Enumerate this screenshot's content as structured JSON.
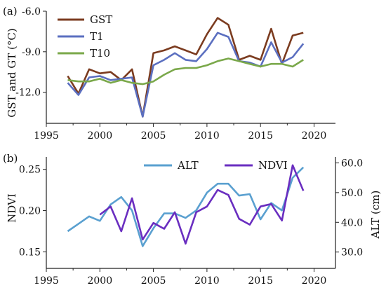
{
  "chart_data": [
    {
      "type": "line",
      "panel_label": "(a)",
      "ylabel": "GST and GT (°C)",
      "xlabel": "",
      "xlim": [
        1995,
        2022
      ],
      "ylim": [
        -14.3,
        -6.0
      ],
      "y_inverted": false,
      "x_ticks": [
        1995,
        2000,
        2005,
        2010,
        2015,
        2020
      ],
      "y_ticks": [
        -6.0,
        -9.0,
        -12.0
      ],
      "y_tick_labels": [
        "-6.0",
        "-9.0",
        "-12.0"
      ],
      "x_tick_labels": [
        "1995",
        "2000",
        "2005",
        "2010",
        "2015",
        "2020"
      ],
      "legend_position": "top-left",
      "grid": false,
      "x": [
        1997,
        1998,
        1999,
        2000,
        2001,
        2002,
        2003,
        2004,
        2005,
        2006,
        2007,
        2008,
        2009,
        2010,
        2011,
        2012,
        2013,
        2014,
        2015,
        2016,
        2017,
        2018,
        2019
      ],
      "series": [
        {
          "name": "GST",
          "color": "#7b3b1f",
          "values": [
            -10.8,
            -12.1,
            -10.3,
            -10.6,
            -10.5,
            -11.1,
            -10.3,
            -13.8,
            -9.1,
            -8.9,
            -8.6,
            -8.9,
            -9.2,
            -7.7,
            -6.5,
            -7.0,
            -9.6,
            -9.3,
            -9.6,
            -7.3,
            -9.9,
            -7.8,
            -7.6
          ]
        },
        {
          "name": "T1",
          "color": "#5b6fc0",
          "values": [
            -11.3,
            -12.2,
            -10.9,
            -10.8,
            -11.1,
            -11.0,
            -10.9,
            -13.8,
            -10.0,
            -9.6,
            -9.1,
            -9.6,
            -9.7,
            -8.8,
            -7.6,
            -7.9,
            -9.7,
            -9.8,
            -10.1,
            -8.3,
            -9.8,
            -9.4,
            -8.4
          ]
        },
        {
          "name": "T10",
          "color": "#7aa84a",
          "values": [
            -11.1,
            -11.2,
            -11.2,
            -11.0,
            -11.3,
            -11.1,
            -11.3,
            -11.4,
            -11.2,
            -10.7,
            -10.3,
            -10.2,
            -10.2,
            -10.0,
            -9.7,
            -9.5,
            -9.7,
            -9.9,
            -10.1,
            -9.9,
            -9.9,
            -10.1,
            -9.6
          ]
        }
      ]
    },
    {
      "type": "line",
      "panel_label": "(b)",
      "ylabel": "NDVI",
      "y2label": "ALT (cm)",
      "xlabel": "",
      "xlim": [
        1995,
        2022
      ],
      "ylim": [
        0.13,
        0.265
      ],
      "y2lim": [
        24.5,
        62.0
      ],
      "x_ticks": [
        1995,
        2000,
        2005,
        2010,
        2015,
        2020
      ],
      "x_tick_labels": [
        "1995",
        "2000",
        "2005",
        "2010",
        "2015",
        "2020"
      ],
      "y_ticks": [
        0.15,
        0.2,
        0.25
      ],
      "y_tick_labels": [
        "0.15",
        "0.20",
        "0.25"
      ],
      "y2_ticks": [
        30.0,
        40.0,
        50.0,
        60.0
      ],
      "y2_tick_labels": [
        "30.0",
        "40.0",
        "50.0",
        "60.0"
      ],
      "legend_position": "top-center",
      "grid": false,
      "x": [
        1997,
        1998,
        1999,
        2000,
        2001,
        2002,
        2003,
        2004,
        2005,
        2006,
        2007,
        2008,
        2009,
        2010,
        2011,
        2012,
        2013,
        2014,
        2015,
        2016,
        2017,
        2018,
        2019
      ],
      "series": [
        {
          "name": "ALT",
          "axis": "right",
          "color": "#5aa0d0",
          "values": [
            37.0,
            39.5,
            42.0,
            40.5,
            46.0,
            48.5,
            44.0,
            32.0,
            38.0,
            43.0,
            43.0,
            41.5,
            44.0,
            50.0,
            53.0,
            53.0,
            49.0,
            49.5,
            41.0,
            46.5,
            44.0,
            55.0,
            58.5
          ]
        },
        {
          "name": "NDVI",
          "axis": "left",
          "color": "#6a2ec0",
          "values": [
            null,
            null,
            null,
            0.195,
            0.205,
            0.175,
            0.215,
            0.165,
            0.185,
            0.178,
            0.198,
            0.16,
            0.198,
            0.205,
            0.225,
            0.219,
            0.19,
            0.183,
            0.205,
            0.208,
            0.188,
            0.255,
            0.224
          ]
        }
      ]
    }
  ]
}
